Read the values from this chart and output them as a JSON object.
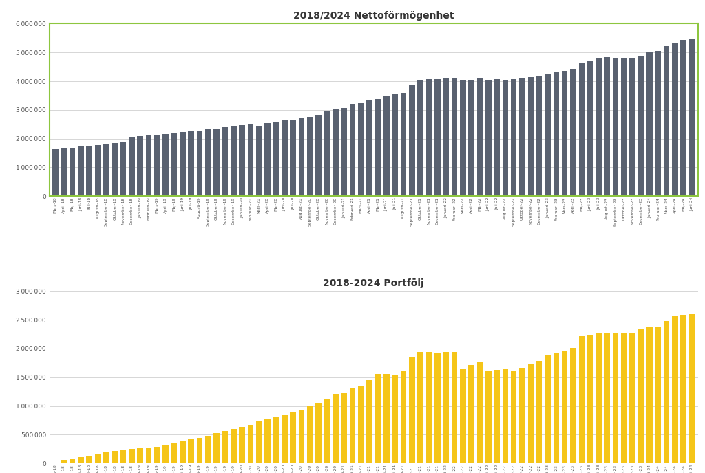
{
  "title1": "2018/2024 Nettoförmögenhet",
  "title2": "2018-2024 Portfölj",
  "bar_color1": "#596170",
  "bar_color2": "#f5c518",
  "border_color": "#8dc63f",
  "bg_color": "#ffffff",
  "labels": [
    "Mars-18",
    "April-18",
    "Maj-18",
    "Juni-18",
    "Juli-18",
    "Augusti-18",
    "September-18",
    "Oktober-18",
    "November-18",
    "December-18",
    "Januari-19",
    "Februari-19",
    "Mars-19",
    "April-19",
    "Maj-19",
    "Juni-19",
    "Juli-19",
    "Augusti-19",
    "September-19",
    "Oktober-19",
    "November-19",
    "December-19",
    "Januari-20",
    "Februari-20",
    "Mars-20",
    "April-20",
    "Maj-20",
    "Juni-20",
    "Juli-20",
    "Augusti-20",
    "September-20",
    "Oktober-20",
    "November-20",
    "December-20",
    "Januari-21",
    "Februari-21",
    "Mars-21",
    "April-21",
    "Maj-21",
    "Juni-21",
    "Juli-21",
    "Augusti-21",
    "September-21",
    "Oktober-21",
    "November-21",
    "December-21",
    "Januari-22",
    "Februari-22",
    "Mars-22",
    "April-22",
    "Maj-22",
    "Juni-22",
    "Juli-22",
    "Augusti-22",
    "September-22",
    "Oktober-22",
    "November-22",
    "December-22",
    "Januari-23",
    "Februari-23",
    "Mars-23",
    "April-23",
    "Maj-23",
    "Juni-23",
    "Juli-23",
    "Augusti-23",
    "September-23",
    "Oktober-23",
    "November-23",
    "December-23",
    "Januari-24",
    "Februari-24",
    "Mars-24",
    "April-24",
    "Maj-24",
    "Juni-24"
  ],
  "values1": [
    1640000,
    1660000,
    1690000,
    1720000,
    1750000,
    1780000,
    1810000,
    1850000,
    1900000,
    2040000,
    2090000,
    2110000,
    2130000,
    2160000,
    2180000,
    2220000,
    2250000,
    2290000,
    2330000,
    2360000,
    2390000,
    2420000,
    2470000,
    2520000,
    2430000,
    2540000,
    2590000,
    2630000,
    2670000,
    2700000,
    2750000,
    2810000,
    2950000,
    3020000,
    3070000,
    3190000,
    3230000,
    3340000,
    3370000,
    3470000,
    3560000,
    3590000,
    3880000,
    4050000,
    4070000,
    4080000,
    4110000,
    4130000,
    4040000,
    4060000,
    4120000,
    4060000,
    4070000,
    4060000,
    4080000,
    4100000,
    4140000,
    4190000,
    4270000,
    4320000,
    4370000,
    4410000,
    4630000,
    4710000,
    4790000,
    4830000,
    4810000,
    4820000,
    4800000,
    4870000,
    5030000,
    5050000,
    5210000,
    5350000,
    5430000,
    5490000
  ],
  "values2": [
    15000,
    60000,
    90000,
    105000,
    125000,
    155000,
    190000,
    215000,
    235000,
    250000,
    265000,
    280000,
    295000,
    325000,
    355000,
    395000,
    420000,
    450000,
    480000,
    525000,
    560000,
    595000,
    635000,
    675000,
    745000,
    775000,
    805000,
    845000,
    895000,
    935000,
    1005000,
    1050000,
    1110000,
    1215000,
    1235000,
    1305000,
    1355000,
    1455000,
    1555000,
    1560000,
    1545000,
    1605000,
    1860000,
    1945000,
    1935000,
    1925000,
    1945000,
    1940000,
    1645000,
    1710000,
    1760000,
    1610000,
    1630000,
    1640000,
    1620000,
    1660000,
    1730000,
    1780000,
    1890000,
    1920000,
    1960000,
    2010000,
    2210000,
    2240000,
    2270000,
    2270000,
    2260000,
    2280000,
    2270000,
    2350000,
    2380000,
    2370000,
    2480000,
    2560000,
    2580000,
    2600000
  ],
  "ylim1": [
    0,
    6000000
  ],
  "ylim2": [
    0,
    3000000
  ],
  "yticks1": [
    0,
    1000000,
    2000000,
    3000000,
    4000000,
    5000000,
    6000000
  ],
  "yticks2": [
    0,
    500000,
    1000000,
    1500000,
    2000000,
    2500000,
    3000000
  ]
}
